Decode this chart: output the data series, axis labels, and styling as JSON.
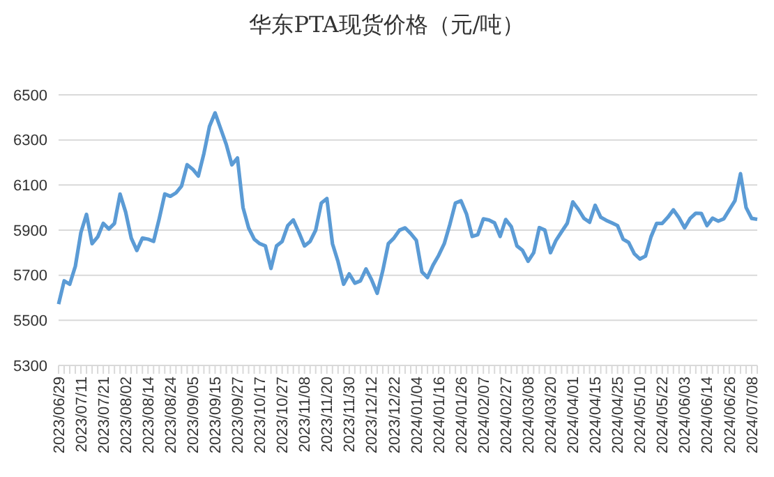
{
  "chart_data": {
    "type": "line",
    "title": "华东PTA现货价格（元/吨）",
    "categories": [
      "2023/06/29",
      null,
      null,
      null,
      "2023/07/11",
      null,
      null,
      null,
      "2023/07/21",
      null,
      null,
      null,
      "2023/08/02",
      null,
      null,
      null,
      "2023/08/14",
      null,
      null,
      null,
      "2023/08/24",
      null,
      null,
      null,
      "2023/09/05",
      null,
      null,
      null,
      "2023/09/15",
      null,
      null,
      null,
      "2023/09/27",
      null,
      null,
      null,
      "2023/10/17",
      null,
      null,
      null,
      "2023/10/27",
      null,
      null,
      null,
      "2023/11/08",
      null,
      null,
      null,
      "2023/11/20",
      null,
      null,
      null,
      "2023/11/30",
      null,
      null,
      null,
      "2023/12/12",
      null,
      null,
      null,
      "2023/12/22",
      null,
      null,
      null,
      "2024/01/04",
      null,
      null,
      null,
      "2024/01/16",
      null,
      null,
      null,
      "2024/01/26",
      null,
      null,
      null,
      "2024/02/07",
      null,
      null,
      null,
      "2024/02/27",
      null,
      null,
      null,
      "2024/03/08",
      null,
      null,
      null,
      "2024/03/20",
      null,
      null,
      null,
      "2024/04/01",
      null,
      null,
      null,
      "2024/04/15",
      null,
      null,
      null,
      "2024/04/25",
      null,
      null,
      null,
      "2024/05/10",
      null,
      null,
      null,
      "2024/05/22",
      null,
      null,
      null,
      "2024/06/03",
      null,
      null,
      null,
      "2024/06/14",
      null,
      null,
      null,
      "2024/06/26",
      null,
      null,
      null,
      "2024/07/08",
      null
    ],
    "series": [
      {
        "color": "#5b9bd5",
        "values": [
          5572,
          5675,
          5660,
          5740,
          5890,
          5970,
          5840,
          5870,
          5930,
          5905,
          5930,
          6060,
          5980,
          5865,
          5810,
          5865,
          5860,
          5850,
          5950,
          6060,
          6050,
          6065,
          6095,
          6190,
          6170,
          6140,
          6240,
          6360,
          6420,
          6350,
          6280,
          6190,
          6220,
          6000,
          5910,
          5860,
          5840,
          5830,
          5730,
          5830,
          5850,
          5920,
          5945,
          5890,
          5830,
          5850,
          5900,
          6020,
          6040,
          5840,
          5760,
          5660,
          5706,
          5665,
          5675,
          5728,
          5680,
          5620,
          5720,
          5840,
          5865,
          5900,
          5910,
          5885,
          5855,
          5715,
          5690,
          5745,
          5788,
          5840,
          5925,
          6020,
          6030,
          5970,
          5872,
          5880,
          5950,
          5945,
          5932,
          5872,
          5947,
          5915,
          5830,
          5810,
          5762,
          5800,
          5911,
          5900,
          5800,
          5855,
          5893,
          5930,
          6025,
          5992,
          5952,
          5935,
          6010,
          5957,
          5943,
          5932,
          5920,
          5860,
          5845,
          5795,
          5772,
          5785,
          5871,
          5930,
          5930,
          5957,
          5990,
          5955,
          5910,
          5952,
          5975,
          5974,
          5920,
          5953,
          5940,
          5950,
          5990,
          6030,
          6150,
          6000,
          5952,
          5948
        ]
      }
    ],
    "ylim": [
      5300,
      6500
    ],
    "yticks": [
      5300,
      5500,
      5700,
      5900,
      6100,
      6300,
      6500
    ],
    "grid": "y",
    "marker": "none",
    "line_style": "solid"
  }
}
